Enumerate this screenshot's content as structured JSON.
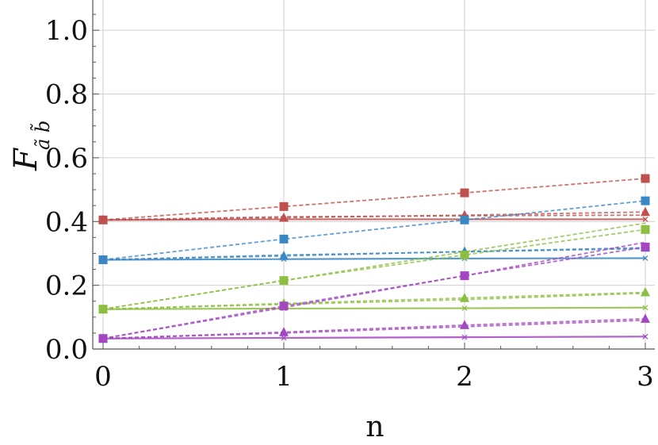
{
  "chart_data": {
    "type": "line",
    "title": "",
    "xlabel": "n",
    "ylabel_main": "F",
    "ylabel_sub": "ã b̃",
    "xlim": [
      0,
      3
    ],
    "ylim": [
      0,
      1.1
    ],
    "grid": true,
    "x": [
      0,
      1,
      2,
      3
    ],
    "xticks": [
      "0",
      "1",
      "2",
      "3"
    ],
    "yticks": [
      "0.0",
      "0.2",
      "0.4",
      "0.6",
      "0.8",
      "1.0"
    ],
    "series": [
      {
        "color": "#c0504d",
        "style": "solid",
        "marker": "x",
        "values": [
          0.405,
          0.407,
          0.407,
          0.407
        ]
      },
      {
        "color": "#c0504d",
        "style": "dashed",
        "marker": "none",
        "values": [
          0.405,
          0.415,
          0.418,
          0.42
        ]
      },
      {
        "color": "#c0504d",
        "style": "dashed",
        "marker": "triangle",
        "values": [
          0.405,
          0.412,
          0.42,
          0.43
        ]
      },
      {
        "color": "#c0504d",
        "style": "dashed",
        "marker": "square",
        "values": [
          0.405,
          0.447,
          0.49,
          0.535
        ]
      },
      {
        "color": "#3b87c4",
        "style": "solid",
        "marker": "x",
        "values": [
          0.28,
          0.282,
          0.284,
          0.285
        ]
      },
      {
        "color": "#3b87c4",
        "style": "dashed",
        "marker": "none",
        "values": [
          0.28,
          0.295,
          0.305,
          0.315
        ]
      },
      {
        "color": "#3b87c4",
        "style": "dashed",
        "marker": "triangle",
        "values": [
          0.28,
          0.292,
          0.306,
          0.318
        ]
      },
      {
        "color": "#3b87c4",
        "style": "dashed",
        "marker": "square",
        "values": [
          0.28,
          0.345,
          0.405,
          0.465
        ]
      },
      {
        "color": "#8cbf3f",
        "style": "solid",
        "marker": "x",
        "values": [
          0.125,
          0.127,
          0.128,
          0.13
        ]
      },
      {
        "color": "#8cbf3f",
        "style": "dashed",
        "marker": "none",
        "values": [
          0.125,
          0.14,
          0.155,
          0.175
        ]
      },
      {
        "color": "#8cbf3f",
        "style": "dashed",
        "marker": "triangle",
        "values": [
          0.125,
          0.143,
          0.16,
          0.178
        ]
      },
      {
        "color": "#8cbf3f",
        "style": "dashed",
        "marker": "square",
        "values": [
          0.125,
          0.215,
          0.295,
          0.375
        ]
      },
      {
        "color": "#8cbf3f",
        "style": "dashed",
        "marker": "none",
        "values": [
          0.125,
          0.215,
          0.305,
          0.395
        ]
      },
      {
        "color": "#a346c2",
        "style": "solid",
        "marker": "x",
        "values": [
          0.033,
          0.035,
          0.037,
          0.039
        ]
      },
      {
        "color": "#a346c2",
        "style": "dashed",
        "marker": "none",
        "values": [
          0.033,
          0.05,
          0.07,
          0.09
        ]
      },
      {
        "color": "#a346c2",
        "style": "dashed",
        "marker": "triangle",
        "values": [
          0.033,
          0.053,
          0.075,
          0.095
        ]
      },
      {
        "color": "#a346c2",
        "style": "dashed",
        "marker": "square",
        "values": [
          0.033,
          0.135,
          0.23,
          0.32
        ]
      },
      {
        "color": "#a346c2",
        "style": "dashed",
        "marker": "none",
        "values": [
          0.033,
          0.13,
          0.23,
          0.335
        ]
      }
    ]
  }
}
